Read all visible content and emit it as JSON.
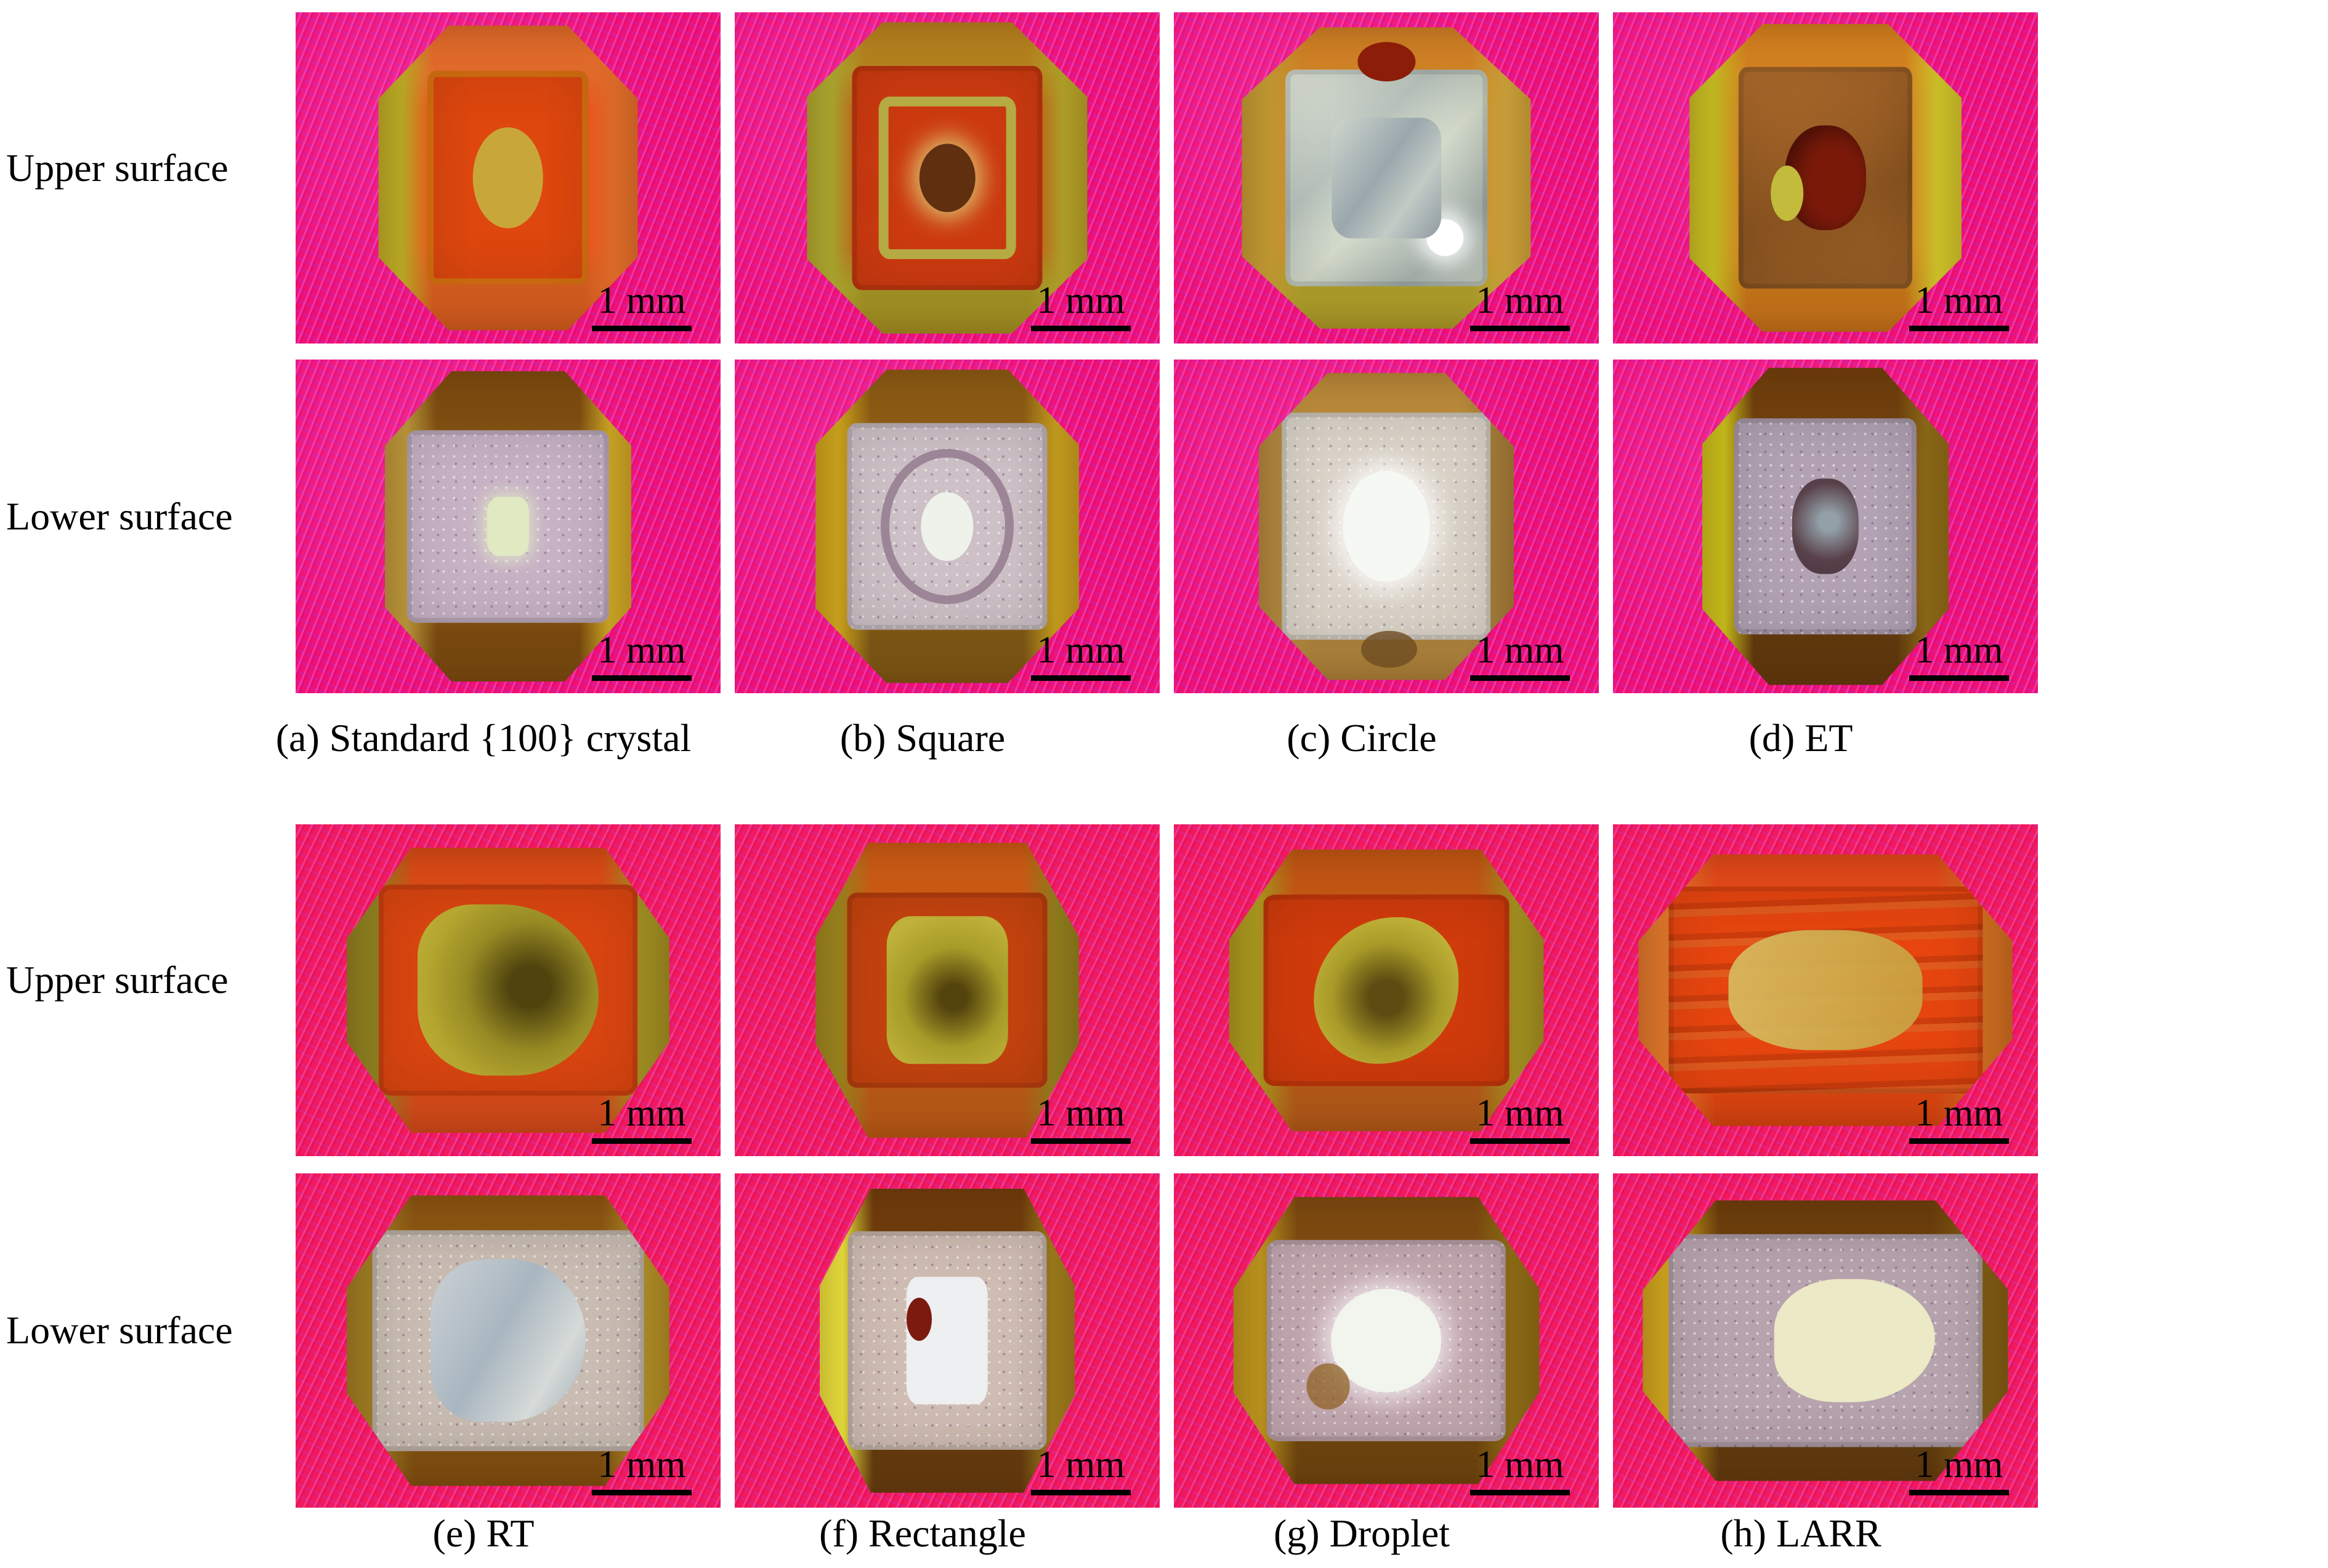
{
  "figure": {
    "scale_label": "1 mm",
    "row_labels": {
      "upper": "Upper surface",
      "lower": "Lower surface"
    },
    "groups": [
      {
        "captions": [
          "(a) Standard {100} crystal",
          "(b) Square",
          "(c) Circle",
          "(d) ET"
        ]
      },
      {
        "captions": [
          "(e) RT",
          "(f) Rectangle",
          "(g) Droplet",
          "(h) LARR"
        ]
      }
    ],
    "colors": {
      "page_background": "#ffffff",
      "fabric_pink": "#ee1176",
      "fabric_pink_alt": "#f1195f",
      "text": "#000000"
    },
    "photos": [
      {
        "id": "a-upper",
        "surface": "Upper surface",
        "caption": "(a) Standard {100} crystal",
        "body_color": "#e8531a",
        "face_color": "#de470e",
        "center_color": "#c9a63a",
        "center_feature": "yellow circular seed"
      },
      {
        "id": "b-upper",
        "surface": "Upper surface",
        "caption": "(b) Square",
        "body_color": "#c24915",
        "face_color": "#cc3a10",
        "center_color": "#5f2f10",
        "center_feature": "dark core in square yellow ring"
      },
      {
        "id": "c-upper",
        "surface": "Upper surface",
        "caption": "(c) Circle",
        "body_color": "#cf8b2d",
        "face_color": "#ccd2c2",
        "center_color": "#a9b3b9",
        "center_feature": "silver square window with circle"
      },
      {
        "id": "d-upper",
        "surface": "Upper surface",
        "caption": "(d) ET",
        "body_color": "#d07a20",
        "face_color": "#a2622a",
        "center_color": "#7c1a0a",
        "center_feature": "dark red round seed"
      },
      {
        "id": "a-lower",
        "surface": "Lower surface",
        "caption": "(a) Standard {100} crystal",
        "body_color": "#8a5a16",
        "face_color": "#c7b2c5",
        "center_color": "#e0e9c2",
        "center_feature": "small bright square seed"
      },
      {
        "id": "b-lower",
        "surface": "Lower surface",
        "caption": "(b) Square",
        "body_color": "#96601a",
        "face_color": "#cdc0c6",
        "center_color": "#eef2ea",
        "center_feature": "white core in frosted ring"
      },
      {
        "id": "c-lower",
        "surface": "Lower surface",
        "caption": "(c) Circle",
        "body_color": "#b28a40",
        "face_color": "#dad3c8",
        "center_color": "#f6f8f3",
        "center_feature": "bright white circle"
      },
      {
        "id": "d-lower",
        "surface": "Lower surface",
        "caption": "(d) ET",
        "body_color": "#7a4a12",
        "face_color": "#b2a2b4",
        "center_color": "#59414a",
        "center_feature": "dark ring core"
      },
      {
        "id": "e-upper",
        "surface": "Upper surface",
        "caption": "(e) RT",
        "body_color": "#de4814",
        "face_color": "#d94510",
        "center_color": "#ab9d2c",
        "center_feature": "olive irregular patch"
      },
      {
        "id": "f-upper",
        "surface": "Upper surface",
        "caption": "(f) Rectangle",
        "body_color": "#cd5012",
        "face_color": "#c4430f",
        "center_color": "#b2a42a",
        "center_feature": "olive rectangle patch"
      },
      {
        "id": "g-upper",
        "surface": "Upper surface",
        "caption": "(g) Droplet",
        "body_color": "#d6430f",
        "face_color": "#d03b0c",
        "center_color": "#b7a92e",
        "center_feature": "yellow droplet patch"
      },
      {
        "id": "h-upper",
        "surface": "Upper surface",
        "caption": "(h) LARR",
        "body_color": "#e63d0c",
        "face_color": "#e23c0a",
        "center_color": "#d2b254",
        "center_feature": "pale elongated streaked patch"
      },
      {
        "id": "e-lower",
        "surface": "Lower surface",
        "caption": "(e) RT",
        "body_color": "#946018",
        "face_color": "#c9bcb2",
        "center_color": "#bfc9d0",
        "center_feature": "silver-blue irregular blob"
      },
      {
        "id": "f-lower",
        "surface": "Lower surface",
        "caption": "(f) Rectangle",
        "body_color": "#7a4610",
        "face_color": "#cfbcb2",
        "center_color": "#edeff0",
        "center_feature": "white rectangle with red spot"
      },
      {
        "id": "g-lower",
        "surface": "Lower surface",
        "caption": "(g) Droplet",
        "body_color": "#885512",
        "face_color": "#c3a8b0",
        "center_color": "#f2f4ee",
        "center_feature": "white oval"
      },
      {
        "id": "h-lower",
        "surface": "Lower surface",
        "caption": "(h) LARR",
        "body_color": "#744a12",
        "face_color": "#b7a3ad",
        "center_color": "#ebe9c6",
        "center_feature": "large pale blob offset right"
      }
    ]
  }
}
